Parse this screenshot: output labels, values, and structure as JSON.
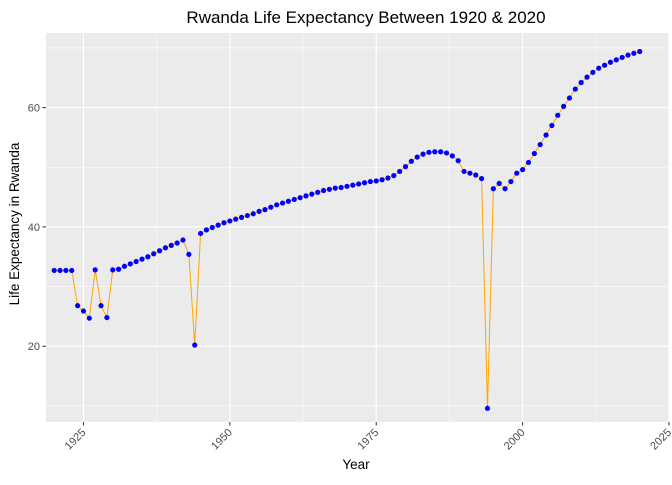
{
  "chart_data": {
    "type": "line",
    "title": "Rwanda Life Expectancy Between 1920 & 2020",
    "xlabel": "Year",
    "ylabel": "Life Expectancy in Rwanda",
    "xlim": [
      1918.6,
      2025.0
    ],
    "ylim": [
      7.3,
      72.5
    ],
    "xticks": [
      1925,
      1950,
      1975,
      2000,
      2025
    ],
    "yticks": [
      20,
      40,
      60
    ],
    "grid": true,
    "legend": "none",
    "line_color": "#FFA500",
    "point_color": "#0000FF",
    "panel_background": "#EBEBEB",
    "grid_color": "#FFFFFF",
    "x": [
      1920,
      1921,
      1922,
      1923,
      1924,
      1925,
      1926,
      1927,
      1928,
      1929,
      1930,
      1931,
      1932,
      1933,
      1934,
      1935,
      1936,
      1937,
      1938,
      1939,
      1940,
      1941,
      1942,
      1943,
      1944,
      1945,
      1946,
      1947,
      1948,
      1949,
      1950,
      1951,
      1952,
      1953,
      1954,
      1955,
      1956,
      1957,
      1958,
      1959,
      1960,
      1961,
      1962,
      1963,
      1964,
      1965,
      1966,
      1967,
      1968,
      1969,
      1970,
      1971,
      1972,
      1973,
      1974,
      1975,
      1976,
      1977,
      1978,
      1979,
      1980,
      1981,
      1982,
      1983,
      1984,
      1985,
      1986,
      1987,
      1988,
      1989,
      1990,
      1991,
      1992,
      1993,
      1994,
      1995,
      1996,
      1997,
      1998,
      1999,
      2000,
      2001,
      2002,
      2003,
      2004,
      2005,
      2006,
      2007,
      2008,
      2009,
      2010,
      2011,
      2012,
      2013,
      2014,
      2015,
      2016,
      2017,
      2018,
      2019,
      2020
    ],
    "y": [
      32.7,
      32.7,
      32.7,
      32.7,
      26.8,
      25.9,
      24.7,
      32.8,
      26.8,
      24.8,
      32.8,
      32.9,
      33.4,
      33.8,
      34.2,
      34.6,
      35.0,
      35.5,
      36.0,
      36.5,
      36.9,
      37.3,
      37.8,
      35.4,
      20.2,
      38.9,
      39.5,
      39.9,
      40.3,
      40.7,
      41.0,
      41.3,
      41.6,
      41.9,
      42.2,
      42.6,
      42.9,
      43.3,
      43.7,
      44.0,
      44.3,
      44.6,
      44.9,
      45.2,
      45.5,
      45.8,
      46.1,
      46.3,
      46.5,
      46.6,
      46.8,
      47.0,
      47.2,
      47.4,
      47.6,
      47.7,
      47.9,
      48.2,
      48.6,
      49.3,
      50.1,
      51.0,
      51.7,
      52.2,
      52.5,
      52.6,
      52.6,
      52.4,
      51.9,
      51.1,
      49.3,
      49.0,
      48.7,
      48.1,
      9.6,
      46.4,
      47.3,
      46.4,
      47.6,
      49.0,
      49.6,
      50.8,
      52.3,
      53.8,
      55.4,
      57.0,
      58.7,
      60.2,
      61.6,
      63.1,
      64.2,
      65.1,
      65.9,
      66.6,
      67.1,
      67.6,
      68.0,
      68.4,
      68.8,
      69.1,
      69.4
    ]
  }
}
